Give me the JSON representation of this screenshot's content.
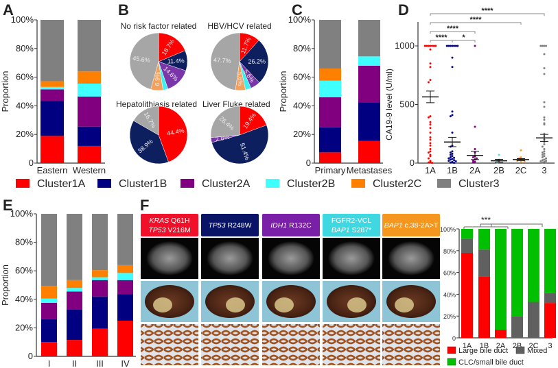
{
  "colors": {
    "Cluster1A": "#ff0000",
    "Cluster1B": "#000080",
    "Cluster2A": "#800080",
    "Cluster2B": "#40ffff",
    "Cluster2C": "#ff8000",
    "Cluster3": "#808080",
    "pie": [
      "#ff0000",
      "#0d1f5e",
      "#7a35a8",
      "#3ff0f0",
      "#f4a05a",
      "#a6a6a6"
    ],
    "large_bile_duct": "#ff0000",
    "mixed": "#606060",
    "clc_small_bile_duct": "#00c000"
  },
  "legend": [
    "Cluster1A",
    "Cluster1B",
    "Cluster2A",
    "Cluster2B",
    "Cluster2C",
    "Cluster3"
  ],
  "panels": {
    "A": "A",
    "B": "B",
    "C": "C",
    "D": "D",
    "E": "E",
    "F": "F"
  },
  "chart_data": [
    {
      "id": "A",
      "type": "bar",
      "stacked": true,
      "ylabel": "Proportion",
      "yticks": [
        "0",
        "20%",
        "40%",
        "60%",
        "80%",
        "100%"
      ],
      "ylim": [
        0,
        100
      ],
      "categories": [
        "Eastern",
        "Western"
      ],
      "series": [
        {
          "name": "Cluster1A",
          "values": [
            19,
            12
          ]
        },
        {
          "name": "Cluster1B",
          "values": [
            24.5,
            13.5
          ]
        },
        {
          "name": "Cluster2A",
          "values": [
            8,
            21
          ]
        },
        {
          "name": "Cluster2B",
          "values": [
            1.7,
            9
          ]
        },
        {
          "name": "Cluster2C",
          "values": [
            4,
            8.5
          ]
        },
        {
          "name": "Cluster3",
          "values": [
            42.8,
            36
          ]
        }
      ]
    },
    {
      "id": "B",
      "type": "pie",
      "pies": [
        {
          "title": "No risk factor related",
          "values": [
            18.7,
            11.4,
            14.6,
            2.8,
            6.9,
            45.6
          ],
          "labels": [
            "18.7%",
            "11.4%",
            "14.6%",
            "",
            "6.9%",
            "45.6%"
          ]
        },
        {
          "title": "HBV/HCV related",
          "values": [
            11.7,
            26.2,
            5.6,
            3.2,
            5.6,
            47.7
          ],
          "labels": [
            "11.7%",
            "26.2%",
            "5.6%",
            "",
            "5.6%",
            "47.7%"
          ]
        },
        {
          "title": "Hepatolithiasis related",
          "values": [
            44.4,
            38.9,
            0,
            0,
            0,
            16.7
          ],
          "labels": [
            "44.4%",
            "38.9%",
            "",
            "",
            "",
            "16.7%"
          ]
        },
        {
          "title": "Liver Fluke related",
          "values": [
            19.4,
            51.4,
            2.8,
            0,
            0,
            26.4
          ],
          "labels": [
            "19.4%",
            "51.4%",
            "2.8%",
            "",
            "",
            "26.4%"
          ]
        }
      ]
    },
    {
      "id": "C",
      "type": "bar",
      "stacked": true,
      "ylabel": "Proportion",
      "yticks": [
        "0",
        "20%",
        "40%",
        "60%",
        "80%",
        "100%"
      ],
      "ylim": [
        0,
        100
      ],
      "categories": [
        "Primary",
        "Metastases"
      ],
      "series": [
        {
          "name": "Cluster1A",
          "values": [
            7.5,
            15.5
          ]
        },
        {
          "name": "Cluster1B",
          "values": [
            17.5,
            27
          ]
        },
        {
          "name": "Cluster2A",
          "values": [
            21,
            25.5
          ]
        },
        {
          "name": "Cluster2B",
          "values": [
            11.5,
            6.5
          ]
        },
        {
          "name": "Cluster2C",
          "values": [
            8.5,
            0
          ]
        },
        {
          "name": "Cluster3",
          "values": [
            34,
            25.5
          ]
        }
      ]
    },
    {
      "id": "D",
      "type": "scatter",
      "ylabel": "CA19-9 level (U/ml)",
      "yticks": [
        "0",
        "500",
        "1000"
      ],
      "ylim": [
        0,
        1200
      ],
      "categories": [
        "1A",
        "1B",
        "2A",
        "2B",
        "2C",
        "3"
      ],
      "mean": [
        565,
        180,
        65,
        20,
        30,
        215
      ],
      "sem": [
        50,
        40,
        35,
        12,
        8,
        30
      ],
      "points": [
        [
          1000,
          1000,
          1000,
          1000,
          1000,
          1000,
          1000,
          970,
          850,
          820,
          710,
          690,
          400,
          390,
          350,
          330,
          300,
          260,
          220,
          200,
          170,
          150,
          120,
          100,
          90,
          70,
          60,
          40,
          20,
          10,
          5,
          2
        ],
        [
          1000,
          1000,
          1000,
          1000,
          1000,
          1000,
          1000,
          900,
          820,
          440,
          410,
          400,
          260,
          150,
          140,
          100,
          90,
          80,
          70,
          60,
          50,
          45,
          40,
          35,
          30,
          25,
          20,
          15,
          10,
          5,
          2
        ],
        [
          1000,
          310,
          120,
          90,
          60,
          50,
          40,
          30,
          20,
          10,
          5
        ],
        [
          70,
          30,
          20,
          10,
          5
        ],
        [
          110,
          50,
          40,
          35,
          30,
          25,
          20,
          15,
          10
        ],
        [
          1000,
          1000,
          1000,
          1000,
          930,
          810,
          760,
          520,
          480,
          390,
          370,
          340,
          330,
          250,
          230,
          200,
          180,
          160,
          140,
          120,
          100,
          90,
          80,
          70,
          60,
          50,
          40,
          30,
          25,
          20,
          15,
          10,
          5,
          2
        ]
      ],
      "significance": [
        {
          "from": "1A",
          "to": "3",
          "label": "****"
        },
        {
          "from": "1A",
          "to": "2C",
          "label": "****"
        },
        {
          "from": "1A",
          "to": "2A",
          "label": "****"
        },
        {
          "from": "1A",
          "to": "1B",
          "label": "****"
        },
        {
          "from": "1B",
          "to": "2A",
          "label": "*"
        }
      ]
    },
    {
      "id": "E",
      "type": "bar",
      "stacked": true,
      "ylabel": "Proportion",
      "yticks": [
        "0",
        "20%",
        "40%",
        "60%",
        "80%",
        "100%"
      ],
      "ylim": [
        0,
        100
      ],
      "categories": [
        "I",
        "II",
        "III",
        "IV"
      ],
      "series": [
        {
          "name": "Cluster1A",
          "values": [
            10,
            11.5,
            19.5,
            25
          ]
        },
        {
          "name": "Cluster1B",
          "values": [
            16,
            21.5,
            22.5,
            18.5
          ]
        },
        {
          "name": "Cluster2A",
          "values": [
            11.5,
            12.5,
            11.5,
            10
          ]
        },
        {
          "name": "Cluster2B",
          "values": [
            3,
            2.5,
            2,
            5
          ]
        },
        {
          "name": "Cluster2C",
          "values": [
            9,
            5.5,
            5,
            5.5
          ]
        },
        {
          "name": "Cluster3",
          "values": [
            50.5,
            46.5,
            39.5,
            36
          ]
        }
      ]
    },
    {
      "id": "F",
      "type": "bar",
      "stacked": true,
      "yticks": [
        "0",
        "20%",
        "40%",
        "60%",
        "80%",
        "100%"
      ],
      "ylim": [
        0,
        100
      ],
      "categories": [
        "1A",
        "1B",
        "2A",
        "2B",
        "2C",
        "3"
      ],
      "series": [
        {
          "name": "Large bile duct",
          "values": [
            78,
            56,
            7.5,
            0,
            0,
            32
          ]
        },
        {
          "name": "Mixed",
          "values": [
            13,
            25,
            0,
            20,
            33,
            9
          ]
        },
        {
          "name": "CLC/small bile duct",
          "values": [
            9,
            19,
            92.5,
            80,
            67,
            59
          ]
        }
      ],
      "significance": {
        "label": "***"
      }
    }
  ],
  "mutations": [
    {
      "lines": [
        {
          "gene": "KRAS",
          "mut": " Q61H"
        },
        {
          "gene": "TP53",
          "mut": " V216M"
        }
      ],
      "color": "#f0102a"
    },
    {
      "lines": [
        {
          "gene": "TP53",
          "mut": " R248W"
        }
      ],
      "color": "#0a1466"
    },
    {
      "lines": [
        {
          "gene": "IDH1",
          "mut": " R132C"
        }
      ],
      "color": "#7a1fa8"
    },
    {
      "lines": [
        {
          "gene": "",
          "mut": "FGFR2-VCL"
        },
        {
          "gene": "BAP1",
          "mut": " S287*"
        }
      ],
      "color": "#40d8e0"
    },
    {
      "lines": [
        {
          "gene": "BAP1",
          "mut": " c.38-2A>T"
        }
      ],
      "color": "#f5961e"
    }
  ]
}
